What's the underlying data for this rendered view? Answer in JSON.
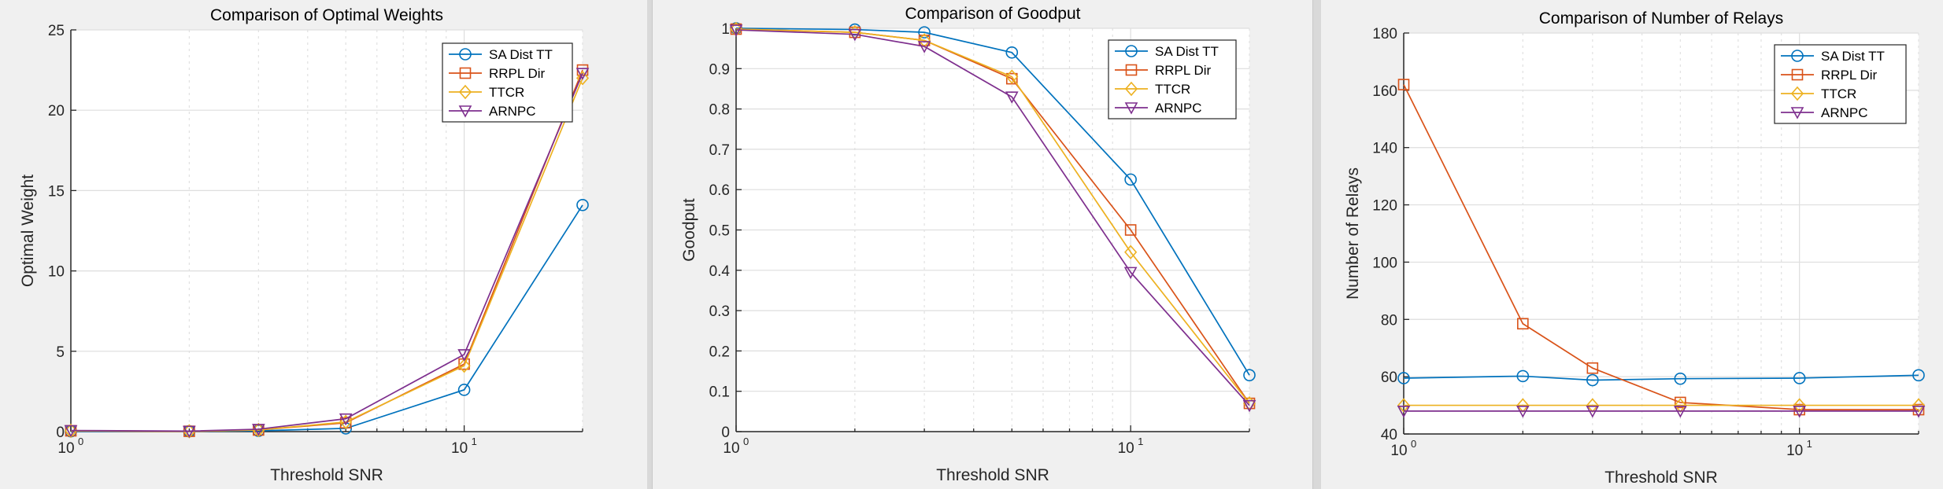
{
  "chart_data": [
    {
      "type": "line",
      "title": "Comparison of Optimal Weights",
      "xlabel": "Threshold SNR",
      "ylabel": "Optimal Weight",
      "xscale": "log",
      "xlim": [
        1,
        20
      ],
      "ylim": [
        0,
        25
      ],
      "yticks": [
        0,
        5,
        10,
        15,
        20,
        25
      ],
      "grid": true,
      "legend_position": "top-right",
      "x": [
        1,
        2,
        3,
        5,
        10,
        20
      ],
      "series": [
        {
          "name": "SA Dist TT",
          "color": "#0072bd",
          "marker": "circle",
          "values": [
            0.02,
            0.02,
            0.05,
            0.2,
            2.6,
            14.1
          ]
        },
        {
          "name": "RRPL Dir",
          "color": "#d95319",
          "marker": "square",
          "values": [
            0.05,
            0.02,
            0.1,
            0.55,
            4.2,
            22.5
          ]
        },
        {
          "name": "TTCR",
          "color": "#edb120",
          "marker": "diamond",
          "values": [
            0.05,
            0.02,
            0.1,
            0.6,
            4.1,
            22.0
          ]
        },
        {
          "name": "ARNPC",
          "color": "#7e2f8e",
          "marker": "triangle-down",
          "values": [
            0.07,
            0.03,
            0.15,
            0.8,
            4.8,
            22.3
          ]
        }
      ]
    },
    {
      "type": "line",
      "title": "Comparison of Goodput",
      "xlabel": "Threshold SNR",
      "ylabel": "Goodput",
      "xscale": "log",
      "xlim": [
        1,
        20
      ],
      "ylim": [
        0,
        1
      ],
      "yticks": [
        0,
        0.1,
        0.2,
        0.3,
        0.4,
        0.5,
        0.6,
        0.7,
        0.8,
        0.9,
        1
      ],
      "grid": true,
      "legend_position": "top-right",
      "x": [
        1,
        2,
        3,
        5,
        10,
        20
      ],
      "series": [
        {
          "name": "SA Dist TT",
          "color": "#0072bd",
          "marker": "circle",
          "values": [
            1.0,
            0.997,
            0.99,
            0.94,
            0.625,
            0.14
          ]
        },
        {
          "name": "RRPL Dir",
          "color": "#d95319",
          "marker": "square",
          "values": [
            0.998,
            0.99,
            0.97,
            0.875,
            0.5,
            0.07
          ]
        },
        {
          "name": "TTCR",
          "color": "#edb120",
          "marker": "diamond",
          "values": [
            0.998,
            0.99,
            0.97,
            0.88,
            0.445,
            0.07
          ]
        },
        {
          "name": "ARNPC",
          "color": "#7e2f8e",
          "marker": "triangle-down",
          "values": [
            0.996,
            0.985,
            0.955,
            0.83,
            0.395,
            0.065
          ]
        }
      ]
    },
    {
      "type": "line",
      "title": "Comparison of Number of Relays",
      "xlabel": "Threshold SNR",
      "ylabel": "Number of Relays",
      "xscale": "log",
      "xlim": [
        1,
        20
      ],
      "ylim": [
        40,
        180
      ],
      "yticks": [
        40,
        60,
        80,
        100,
        120,
        140,
        160,
        180
      ],
      "grid": true,
      "legend_position": "top-right",
      "x": [
        1,
        2,
        3,
        5,
        10,
        20
      ],
      "series": [
        {
          "name": "SA Dist TT",
          "color": "#0072bd",
          "marker": "circle",
          "values": [
            59.5,
            60.2,
            58.8,
            59.3,
            59.5,
            60.5
          ]
        },
        {
          "name": "RRPL Dir",
          "color": "#d95319",
          "marker": "square",
          "values": [
            162,
            78.5,
            63,
            51,
            48.5,
            48.5
          ]
        },
        {
          "name": "TTCR",
          "color": "#edb120",
          "marker": "diamond",
          "values": [
            50,
            50,
            50,
            50,
            50,
            50
          ]
        },
        {
          "name": "ARNPC",
          "color": "#7e2f8e",
          "marker": "triangle-down",
          "values": [
            48,
            48,
            48,
            48,
            48,
            48
          ]
        }
      ]
    }
  ]
}
